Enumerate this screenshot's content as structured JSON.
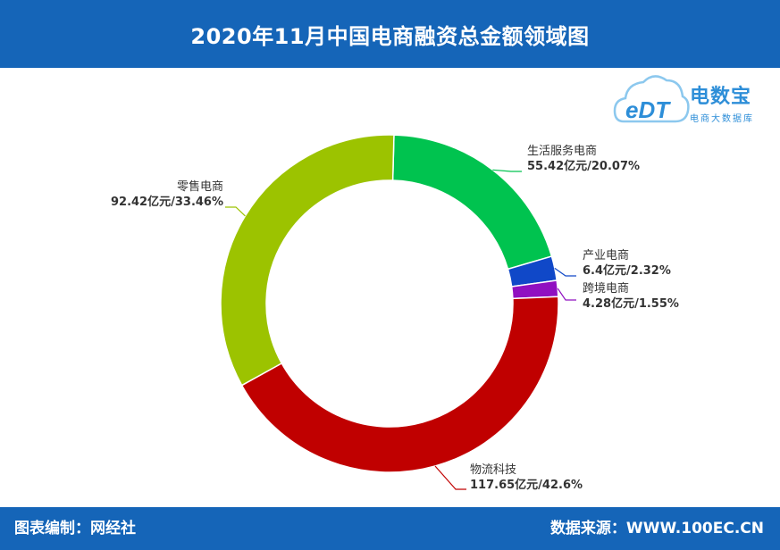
{
  "header": {
    "title": "2020年11月中国电商融资总金额领域图"
  },
  "footer": {
    "left": "图表编制：网经社",
    "right": "数据来源：WWW.100EC.CN"
  },
  "logo": {
    "mark": "eDT",
    "brand": "电数宝",
    "tagline": "电商大数据库"
  },
  "colors": {
    "header_bg": "#1565b8",
    "生活服务电商": "#00c34f",
    "产业电商": "#1048c8",
    "跨境电商": "#9010c0",
    "物流科技": "#c00000",
    "零售电商": "#9cc300"
  },
  "chart_data": {
    "type": "pie",
    "subtype": "donut",
    "title": "2020年11月中国电商融资总金额领域图",
    "unit": "亿元",
    "slices": [
      {
        "name": "生活服务电商",
        "value": 55.42,
        "percent": 20.07,
        "label": "55.42亿元/20.07%"
      },
      {
        "name": "产业电商",
        "value": 6.4,
        "percent": 2.32,
        "label": "6.4亿元/2.32%"
      },
      {
        "name": "跨境电商",
        "value": 4.28,
        "percent": 1.55,
        "label": "4.28亿元/1.55%"
      },
      {
        "name": "物流科技",
        "value": 117.65,
        "percent": 42.6,
        "label": "117.65亿元/42.6%"
      },
      {
        "name": "零售电商",
        "value": 92.42,
        "percent": 33.46,
        "label": "92.42亿元/33.46%"
      }
    ]
  }
}
